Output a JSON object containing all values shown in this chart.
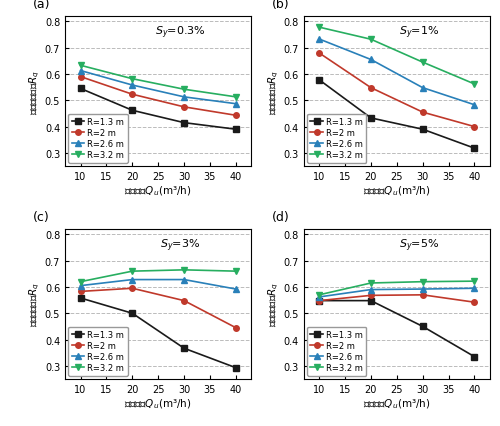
{
  "x": [
    10,
    20,
    30,
    40
  ],
  "panels": [
    {
      "label": "(a)",
      "title": "$S_y$=0.3%",
      "series": [
        {
          "name": "R=1.3 m",
          "y": [
            0.545,
            0.462,
            0.415,
            0.39
          ]
        },
        {
          "name": "R=2 m",
          "y": [
            0.59,
            0.523,
            0.475,
            0.443
          ]
        },
        {
          "name": "R=2.6 m",
          "y": [
            0.613,
            0.558,
            0.513,
            0.487
          ]
        },
        {
          "name": "R=3.2 m",
          "y": [
            0.633,
            0.582,
            0.542,
            0.513
          ]
        }
      ]
    },
    {
      "label": "(b)",
      "title": "$S_y$=1%",
      "series": [
        {
          "name": "R=1.3 m",
          "y": [
            0.578,
            0.433,
            0.39,
            0.318
          ]
        },
        {
          "name": "R=2 m",
          "y": [
            0.68,
            0.548,
            0.455,
            0.4
          ]
        },
        {
          "name": "R=2.6 m",
          "y": [
            0.733,
            0.655,
            0.548,
            0.483
          ]
        },
        {
          "name": "R=3.2 m",
          "y": [
            0.778,
            0.732,
            0.645,
            0.562
          ]
        }
      ]
    },
    {
      "label": "(c)",
      "title": "$S_y$=3%",
      "series": [
        {
          "name": "R=1.3 m",
          "y": [
            0.558,
            0.5,
            0.367,
            0.293
          ]
        },
        {
          "name": "R=2 m",
          "y": [
            0.583,
            0.595,
            0.548,
            0.445
          ]
        },
        {
          "name": "R=2.6 m",
          "y": [
            0.605,
            0.628,
            0.628,
            0.592
          ]
        },
        {
          "name": "R=3.2 m",
          "y": [
            0.62,
            0.66,
            0.665,
            0.66
          ]
        }
      ]
    },
    {
      "label": "(d)",
      "title": "$S_y$=5%",
      "series": [
        {
          "name": "R=1.3 m",
          "y": [
            0.548,
            0.548,
            0.45,
            0.335
          ]
        },
        {
          "name": "R=2 m",
          "y": [
            0.548,
            0.568,
            0.57,
            0.542
          ]
        },
        {
          "name": "R=2.6 m",
          "y": [
            0.562,
            0.59,
            0.592,
            0.595
          ]
        },
        {
          "name": "R=3.2 m",
          "y": [
            0.57,
            0.615,
            0.62,
            0.622
          ]
        }
      ]
    }
  ],
  "colors": [
    "#1a1a1a",
    "#c0392b",
    "#2980b9",
    "#27ae60"
  ],
  "markers": [
    "s",
    "o",
    "^",
    "v"
  ],
  "ylim": [
    0.25,
    0.82
  ],
  "yticks": [
    0.3,
    0.4,
    0.5,
    0.6,
    0.7,
    0.8
  ],
  "xticks": [
    10,
    15,
    20,
    25,
    30,
    35,
    40
  ],
  "ylabel": "流量分配系数$R_q$",
  "xlabel": "入流流量$Q_u$(m³/h)",
  "grid_color": "#bbbbbb",
  "grid_style": "--",
  "grid_lw": 0.7,
  "line_lw": 1.2,
  "marker_size": 4,
  "tick_fontsize": 7,
  "label_fontsize": 7.5,
  "title_fontsize": 8,
  "legend_fontsize": 6,
  "panel_label_fontsize": 9
}
